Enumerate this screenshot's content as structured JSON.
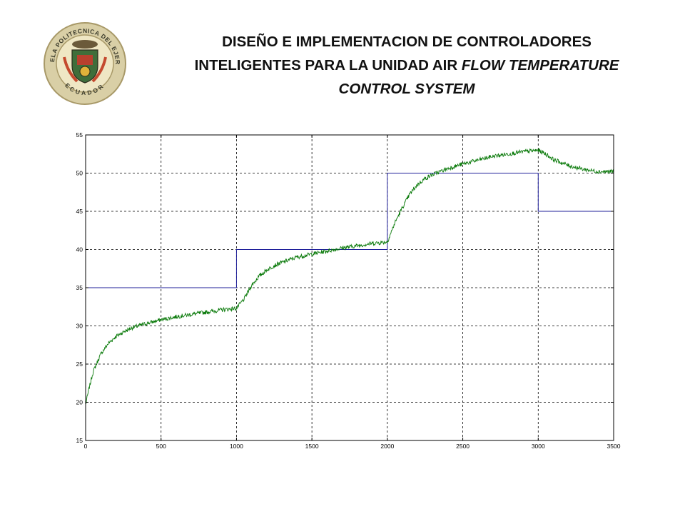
{
  "header": {
    "title_line1": "DISEÑO E IMPLEMENTACION DE CONTROLADORES",
    "title_line2_normal": "INTELIGENTES PARA LA UNIDAD AIR ",
    "title_line2_italic": "FLOW TEMPERATURE",
    "title_line3_italic": "CONTROL SYSTEM"
  },
  "logo": {
    "icon": "institution-seal-icon",
    "text_top": "ESCUELA POLITECNICA DEL EJERCITO",
    "text_bottom": "ECUADOR"
  },
  "colors": {
    "setpoint": "#1f1f9a",
    "response": "#0a7a0a",
    "grid": "#000000",
    "axis": "#000000"
  },
  "chart_data": {
    "type": "line",
    "title": "",
    "xlabel": "",
    "ylabel": "",
    "xlim": [
      0,
      3500
    ],
    "ylim": [
      15,
      55
    ],
    "xticks": [
      0,
      500,
      1000,
      1500,
      2000,
      2500,
      3000,
      3500
    ],
    "yticks": [
      15,
      20,
      25,
      30,
      35,
      40,
      45,
      50,
      55
    ],
    "grid": true,
    "grid_style": "dashed",
    "legend": "none",
    "series": [
      {
        "color": "#1f1f9a",
        "x": [
          0,
          1000,
          1000,
          2000,
          2000,
          3000,
          3000,
          3500
        ],
        "y": [
          35,
          35,
          40,
          40,
          50,
          50,
          45,
          45
        ]
      },
      {
        "color": "#0a7a0a",
        "noisy": true,
        "x": [
          0,
          25,
          50,
          100,
          150,
          200,
          250,
          300,
          400,
          500,
          600,
          700,
          800,
          900,
          1000,
          1050,
          1100,
          1150,
          1200,
          1250,
          1300,
          1400,
          1500,
          1600,
          1700,
          1800,
          1900,
          2000,
          2050,
          2100,
          2150,
          2200,
          2250,
          2300,
          2400,
          2500,
          2600,
          2700,
          2800,
          2900,
          3000,
          3050,
          3100,
          3200,
          3300,
          3400,
          3500
        ],
        "y": [
          19.7,
          22,
          24,
          26.3,
          27.7,
          28.6,
          29.2,
          29.7,
          30.3,
          30.8,
          31.2,
          31.5,
          31.8,
          32.1,
          32.3,
          33.5,
          35.3,
          36.5,
          37.3,
          37.9,
          38.3,
          39,
          39.4,
          39.8,
          40.2,
          40.5,
          40.8,
          41,
          43.5,
          45.5,
          47.3,
          48.5,
          49.3,
          49.8,
          50.6,
          51.2,
          51.7,
          52.2,
          52.5,
          52.8,
          53,
          52.5,
          51.8,
          51,
          50.5,
          50.2,
          50.2
        ]
      }
    ]
  }
}
